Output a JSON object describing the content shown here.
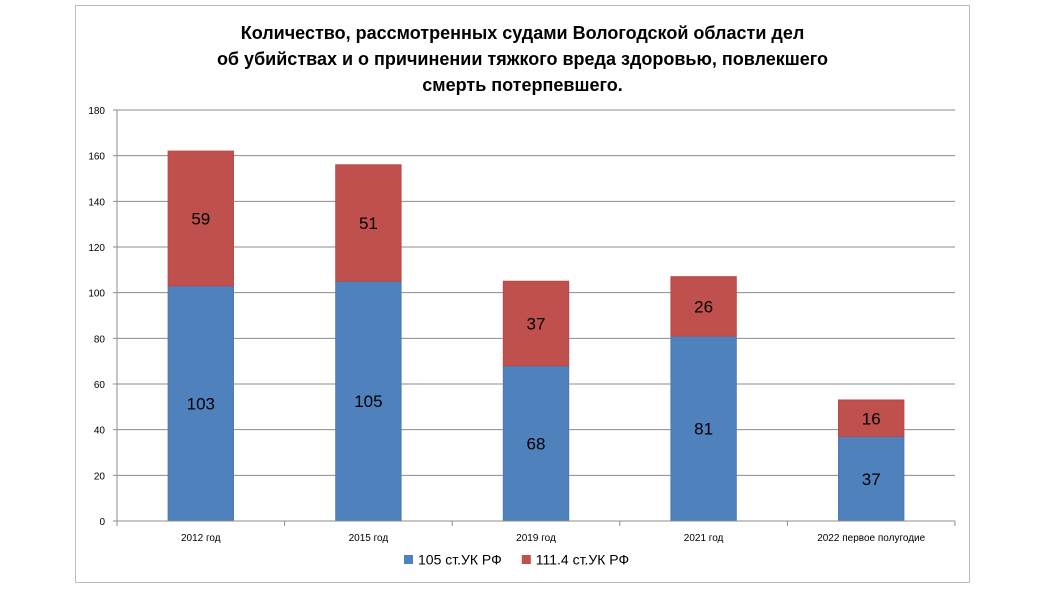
{
  "chart_data": {
    "type": "bar",
    "stacked": true,
    "title_lines": [
      "Количество, рассмотренных судами Вологодской области дел",
      "об убийствах  и о причинении тяжкого вреда здоровью, повлекшего",
      "смерть потерпевшего."
    ],
    "categories": [
      "2012 год",
      "2015 год",
      "2019 год",
      "2021 год",
      "2022 первое полугодие"
    ],
    "series": [
      {
        "name": "105 ст.УК РФ",
        "values": [
          103,
          105,
          68,
          81,
          37
        ],
        "color": "#4f81bd"
      },
      {
        "name": "111.4 ст.УК РФ",
        "values": [
          59,
          51,
          37,
          26,
          16
        ],
        "color": "#c0504d"
      }
    ],
    "ylim": [
      0,
      180
    ],
    "yticks": [
      "0",
      "20",
      "40",
      "60",
      "80",
      "100",
      "120",
      "140",
      "160",
      "180"
    ],
    "grid": true,
    "legend_position": "bottom"
  }
}
